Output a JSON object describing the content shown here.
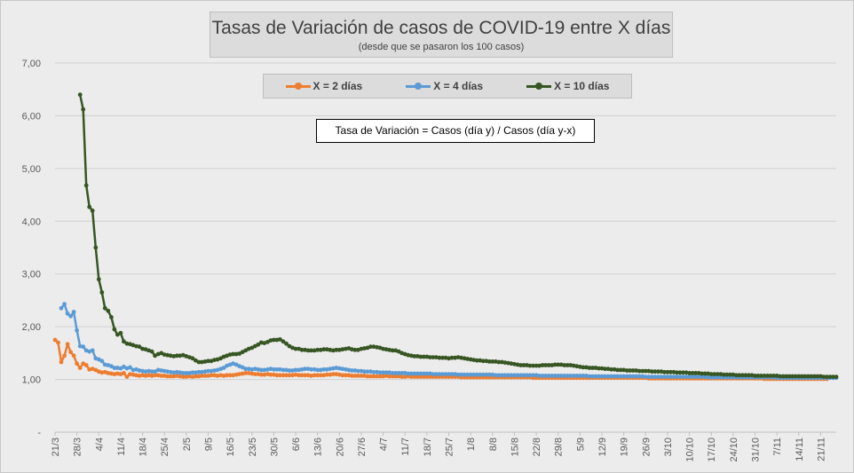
{
  "chart_data": {
    "type": "line",
    "title": "Tasas de Variación de casos de COVID-19 entre X días",
    "subtitle": "(desde que se pasaron los 100 casos)",
    "annotation": "Tasa de Variación = Casos (día y) / Casos (día y-x)",
    "ylim": [
      0,
      7
    ],
    "y_ticks": [
      "-",
      "1,00",
      "2,00",
      "3,00",
      "4,00",
      "5,00",
      "6,00",
      "7,00"
    ],
    "x_ticks": [
      "21/3",
      "28/3",
      "4/4",
      "11/4",
      "18/4",
      "25/4",
      "2/5",
      "9/5",
      "16/5",
      "23/5",
      "30/5",
      "6/6",
      "13/6",
      "20/6",
      "27/6",
      "4/7",
      "11/7",
      "18/7",
      "25/7",
      "1/8",
      "8/8",
      "15/8",
      "22/8",
      "29/8",
      "5/9",
      "12/9",
      "19/9",
      "26/9",
      "3/10",
      "10/10",
      "17/10",
      "24/10",
      "31/10",
      "7/11",
      "14/11",
      "21/11"
    ],
    "x_start": "21/3",
    "grid": true,
    "legend_position": "top",
    "colors": {
      "x2": "#ed7d31",
      "x4": "#5b9bd5",
      "x10": "#375623"
    },
    "series": [
      {
        "name": "X = 2 días",
        "start_day": 0,
        "values": [
          1.75,
          1.7,
          1.33,
          1.45,
          1.67,
          1.52,
          1.45,
          1.3,
          1.22,
          1.3,
          1.27,
          1.19,
          1.2,
          1.18,
          1.15,
          1.13,
          1.14,
          1.12,
          1.11,
          1.1,
          1.11,
          1.1,
          1.12,
          1.05,
          1.1,
          1.09,
          1.08,
          1.07,
          1.08,
          1.07,
          1.08,
          1.07,
          1.08,
          1.08,
          1.07,
          1.07,
          1.06,
          1.06,
          1.06,
          1.07,
          1.06,
          1.05,
          1.05,
          1.06,
          1.05,
          1.06,
          1.06,
          1.07,
          1.07,
          1.07,
          1.08,
          1.08,
          1.07,
          1.08,
          1.07,
          1.08,
          1.08,
          1.08,
          1.09,
          1.1,
          1.11,
          1.12,
          1.12,
          1.11,
          1.1,
          1.1,
          1.09,
          1.09,
          1.1,
          1.09,
          1.09,
          1.08,
          1.08,
          1.08,
          1.08,
          1.08,
          1.08,
          1.09,
          1.08,
          1.08,
          1.08,
          1.08,
          1.07,
          1.08,
          1.08,
          1.08,
          1.08,
          1.09,
          1.09,
          1.1,
          1.1,
          1.09,
          1.08,
          1.08,
          1.08,
          1.07,
          1.07,
          1.07,
          1.07,
          1.07,
          1.06,
          1.06,
          1.06,
          1.06,
          1.06,
          1.06,
          1.07,
          1.06,
          1.06,
          1.06,
          1.06,
          1.05,
          1.05,
          1.06,
          1.05,
          1.05,
          1.05,
          1.05,
          1.05,
          1.05,
          1.05,
          1.05,
          1.05,
          1.05,
          1.05,
          1.05,
          1.05,
          1.05,
          1.05,
          1.05,
          1.04,
          1.04,
          1.04,
          1.04,
          1.04,
          1.04,
          1.04,
          1.04,
          1.04,
          1.04,
          1.04,
          1.04,
          1.04,
          1.04,
          1.04,
          1.04,
          1.04,
          1.04,
          1.04,
          1.04,
          1.04,
          1.04,
          1.04,
          1.03,
          1.03,
          1.03,
          1.03,
          1.03,
          1.03,
          1.03,
          1.03,
          1.03,
          1.03,
          1.03,
          1.03,
          1.03,
          1.03,
          1.03,
          1.03,
          1.03,
          1.03,
          1.03,
          1.03,
          1.03,
          1.03,
          1.03,
          1.03,
          1.03,
          1.03,
          1.03,
          1.03,
          1.03,
          1.03,
          1.03,
          1.03,
          1.03,
          1.03,
          1.03,
          1.03,
          1.03,
          1.02,
          1.02,
          1.02,
          1.02,
          1.02,
          1.02,
          1.02,
          1.02,
          1.02,
          1.02,
          1.02,
          1.02,
          1.02,
          1.02,
          1.02,
          1.02,
          1.02,
          1.02,
          1.02,
          1.02,
          1.02,
          1.02,
          1.02,
          1.02,
          1.02,
          1.02,
          1.02,
          1.02,
          1.02,
          1.02,
          1.02,
          1.02,
          1.02,
          1.02,
          1.02,
          1.02,
          1.02,
          1.01,
          1.01,
          1.01,
          1.01,
          1.01,
          1.01,
          1.01,
          1.01,
          1.01,
          1.01,
          1.01,
          1.01,
          1.01,
          1.01,
          1.01,
          1.01,
          1.01,
          1.01,
          1.01,
          1.01,
          1.01
        ]
      },
      {
        "name": "X = 4 días",
        "start_day": 2,
        "values": [
          2.35,
          2.43,
          2.25,
          2.2,
          2.28,
          1.93,
          1.63,
          1.62,
          1.55,
          1.53,
          1.55,
          1.4,
          1.38,
          1.35,
          1.28,
          1.27,
          1.25,
          1.22,
          1.22,
          1.21,
          1.24,
          1.21,
          1.23,
          1.18,
          1.19,
          1.17,
          1.16,
          1.15,
          1.16,
          1.15,
          1.15,
          1.18,
          1.17,
          1.16,
          1.15,
          1.14,
          1.13,
          1.14,
          1.13,
          1.12,
          1.12,
          1.12,
          1.13,
          1.13,
          1.14,
          1.14,
          1.15,
          1.16,
          1.16,
          1.17,
          1.18,
          1.2,
          1.22,
          1.26,
          1.28,
          1.3,
          1.28,
          1.25,
          1.23,
          1.2,
          1.2,
          1.19,
          1.2,
          1.19,
          1.18,
          1.18,
          1.19,
          1.2,
          1.19,
          1.19,
          1.19,
          1.18,
          1.18,
          1.17,
          1.17,
          1.18,
          1.18,
          1.19,
          1.2,
          1.2,
          1.19,
          1.19,
          1.18,
          1.18,
          1.19,
          1.19,
          1.2,
          1.21,
          1.22,
          1.21,
          1.2,
          1.19,
          1.18,
          1.17,
          1.17,
          1.16,
          1.16,
          1.15,
          1.15,
          1.15,
          1.14,
          1.14,
          1.13,
          1.13,
          1.13,
          1.13,
          1.12,
          1.12,
          1.12,
          1.12,
          1.12,
          1.11,
          1.11,
          1.11,
          1.11,
          1.11,
          1.11,
          1.11,
          1.11,
          1.1,
          1.1,
          1.1,
          1.1,
          1.1,
          1.1,
          1.1,
          1.1,
          1.09,
          1.09,
          1.09,
          1.09,
          1.09,
          1.09,
          1.09,
          1.09,
          1.09,
          1.09,
          1.09,
          1.09,
          1.08,
          1.08,
          1.08,
          1.08,
          1.08,
          1.08,
          1.08,
          1.08,
          1.08,
          1.08,
          1.08,
          1.08,
          1.08,
          1.08,
          1.07,
          1.07,
          1.07,
          1.07,
          1.07,
          1.07,
          1.07,
          1.07,
          1.07,
          1.07,
          1.07,
          1.07,
          1.07,
          1.07,
          1.07,
          1.07,
          1.06,
          1.06,
          1.06,
          1.06,
          1.06,
          1.06,
          1.06,
          1.06,
          1.06,
          1.06,
          1.06,
          1.06,
          1.06,
          1.06,
          1.06,
          1.06,
          1.06,
          1.06,
          1.05,
          1.05,
          1.05,
          1.05,
          1.05,
          1.05,
          1.05,
          1.05,
          1.05,
          1.05,
          1.05,
          1.05,
          1.05,
          1.05,
          1.05,
          1.05,
          1.05,
          1.05,
          1.05,
          1.05,
          1.04,
          1.04,
          1.04,
          1.04,
          1.04,
          1.04,
          1.04,
          1.04,
          1.04,
          1.04,
          1.04,
          1.04,
          1.04,
          1.04,
          1.04,
          1.04,
          1.04,
          1.04,
          1.04,
          1.04,
          1.04,
          1.04,
          1.03,
          1.03,
          1.03,
          1.03,
          1.03,
          1.03,
          1.03,
          1.03,
          1.03,
          1.03,
          1.03,
          1.03,
          1.03,
          1.03,
          1.03,
          1.03,
          1.03,
          1.03,
          1.03,
          1.03
        ]
      },
      {
        "name": "X = 10 días",
        "start_day": 8,
        "values": [
          6.4,
          6.12,
          4.68,
          4.27,
          4.2,
          3.5,
          2.9,
          2.65,
          2.35,
          2.3,
          2.18,
          1.95,
          1.85,
          1.88,
          1.72,
          1.68,
          1.67,
          1.65,
          1.63,
          1.62,
          1.58,
          1.57,
          1.55,
          1.53,
          1.45,
          1.48,
          1.5,
          1.47,
          1.46,
          1.45,
          1.44,
          1.45,
          1.45,
          1.46,
          1.44,
          1.42,
          1.4,
          1.36,
          1.33,
          1.33,
          1.34,
          1.35,
          1.35,
          1.37,
          1.38,
          1.4,
          1.43,
          1.45,
          1.47,
          1.48,
          1.48,
          1.49,
          1.52,
          1.55,
          1.58,
          1.6,
          1.63,
          1.66,
          1.7,
          1.69,
          1.71,
          1.74,
          1.75,
          1.75,
          1.76,
          1.72,
          1.68,
          1.63,
          1.6,
          1.58,
          1.58,
          1.56,
          1.56,
          1.55,
          1.55,
          1.55,
          1.56,
          1.56,
          1.57,
          1.57,
          1.56,
          1.55,
          1.56,
          1.56,
          1.57,
          1.58,
          1.59,
          1.57,
          1.56,
          1.56,
          1.58,
          1.59,
          1.6,
          1.62,
          1.62,
          1.61,
          1.6,
          1.58,
          1.57,
          1.56,
          1.55,
          1.55,
          1.53,
          1.5,
          1.48,
          1.46,
          1.45,
          1.44,
          1.44,
          1.43,
          1.43,
          1.43,
          1.42,
          1.42,
          1.42,
          1.41,
          1.41,
          1.41,
          1.4,
          1.41,
          1.41,
          1.42,
          1.41,
          1.4,
          1.39,
          1.38,
          1.37,
          1.36,
          1.36,
          1.35,
          1.35,
          1.34,
          1.34,
          1.34,
          1.33,
          1.33,
          1.32,
          1.31,
          1.3,
          1.29,
          1.28,
          1.27,
          1.27,
          1.27,
          1.26,
          1.26,
          1.26,
          1.26,
          1.27,
          1.27,
          1.27,
          1.27,
          1.28,
          1.28,
          1.28,
          1.27,
          1.27,
          1.27,
          1.26,
          1.25,
          1.24,
          1.23,
          1.23,
          1.22,
          1.22,
          1.22,
          1.21,
          1.21,
          1.2,
          1.2,
          1.19,
          1.19,
          1.18,
          1.18,
          1.18,
          1.17,
          1.17,
          1.17,
          1.17,
          1.16,
          1.16,
          1.16,
          1.16,
          1.15,
          1.15,
          1.15,
          1.15,
          1.14,
          1.14,
          1.14,
          1.14,
          1.13,
          1.13,
          1.13,
          1.13,
          1.12,
          1.12,
          1.12,
          1.12,
          1.11,
          1.11,
          1.11,
          1.1,
          1.1,
          1.1,
          1.1,
          1.09,
          1.09,
          1.09,
          1.09,
          1.08,
          1.08,
          1.08,
          1.08,
          1.08,
          1.08,
          1.07,
          1.07,
          1.07,
          1.07,
          1.07,
          1.07,
          1.07,
          1.07,
          1.06,
          1.06,
          1.06,
          1.06,
          1.06,
          1.06,
          1.06,
          1.06,
          1.06,
          1.06,
          1.06,
          1.06,
          1.06,
          1.06,
          1.05,
          1.05,
          1.05,
          1.05,
          1.05
        ]
      }
    ]
  }
}
